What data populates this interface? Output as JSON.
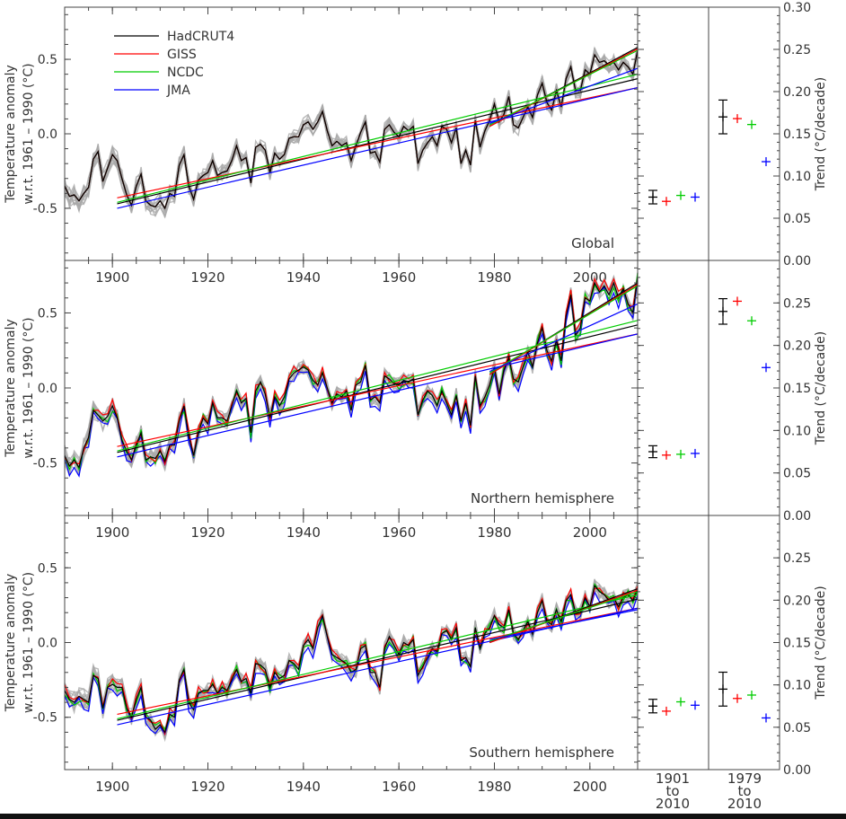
{
  "figure": {
    "y_tick_labels": [
      "-0.5",
      "0.0",
      "0.5"
    ],
    "x_tick_labels": [
      "1900",
      "1920",
      "1940",
      "1960",
      "1980",
      "2000"
    ],
    "trend_tick_labels": [
      "0.00",
      "0.05",
      "0.10",
      "0.15",
      "0.20",
      "0.25",
      "0.30"
    ],
    "ylabel_line1": "Temperature anomaly",
    "ylabel_line2": "w.r.t. 1961 – 1990 (°C)",
    "trend_ylabel": "Trend (°C/decade)",
    "period1": [
      "1901",
      "to",
      "2010"
    ],
    "period2": [
      "1979",
      "to",
      "2010"
    ]
  },
  "colors": {
    "HadCRUT4": "#000000",
    "GISS": "#ff0000",
    "NCDC": "#00cc00",
    "JMA": "#0000ff",
    "ensemble": "#a9a9a9",
    "axis": "#444444"
  },
  "chart_data": [
    {
      "type": "line",
      "panel_label": "Global",
      "xlim": [
        1890,
        2010
      ],
      "ylim": [
        -0.85,
        0.85
      ],
      "years_start": 1890,
      "legend": [
        "HadCRUT4",
        "GISS",
        "NCDC",
        "JMA"
      ],
      "series": [
        {
          "name": "HadCRUT4",
          "values": [
            -0.35,
            -0.42,
            -0.41,
            -0.45,
            -0.4,
            -0.36,
            -0.17,
            -0.12,
            -0.32,
            -0.23,
            -0.14,
            -0.18,
            -0.3,
            -0.41,
            -0.48,
            -0.35,
            -0.27,
            -0.45,
            -0.48,
            -0.49,
            -0.45,
            -0.5,
            -0.4,
            -0.42,
            -0.21,
            -0.14,
            -0.35,
            -0.44,
            -0.31,
            -0.28,
            -0.26,
            -0.18,
            -0.28,
            -0.26,
            -0.25,
            -0.18,
            -0.08,
            -0.18,
            -0.16,
            -0.33,
            -0.09,
            -0.07,
            -0.11,
            -0.26,
            -0.13,
            -0.17,
            -0.14,
            -0.03,
            -0.02,
            -0.02,
            0.06,
            0.08,
            0.03,
            0.08,
            0.15,
            0.02,
            -0.08,
            -0.05,
            -0.08,
            -0.06,
            -0.18,
            -0.08,
            0.01,
            0.08,
            -0.13,
            -0.12,
            -0.19,
            0.03,
            0.06,
            0.01,
            -0.02,
            0.05,
            0.02,
            0.05,
            -0.2,
            -0.11,
            -0.06,
            -0.02,
            -0.08,
            0.05,
            0.03,
            -0.06,
            0.04,
            -0.2,
            -0.11,
            -0.21,
            0.09,
            -0.09,
            0.02,
            0.09,
            0.2,
            0.08,
            0.13,
            0.25,
            0.06,
            0.04,
            0.11,
            0.18,
            0.11,
            0.26,
            0.34,
            0.21,
            0.16,
            0.29,
            0.18,
            0.37,
            0.45,
            0.29,
            0.29,
            0.43,
            0.4,
            0.53,
            0.48,
            0.49,
            0.46,
            0.48,
            0.43,
            0.48,
            0.45,
            0.4,
            0.56
          ]
        },
        {
          "name": "GISS",
          "values": [
            -0.35,
            -0.42,
            -0.41,
            -0.45,
            -0.4,
            -0.36,
            -0.17,
            -0.12,
            -0.32,
            -0.23,
            -0.14,
            -0.18,
            -0.3,
            -0.41,
            -0.48,
            -0.35,
            -0.27,
            -0.45,
            -0.48,
            -0.49,
            -0.45,
            -0.5,
            -0.4,
            -0.42,
            -0.21,
            -0.14,
            -0.35,
            -0.44,
            -0.31,
            -0.28,
            -0.26,
            -0.18,
            -0.28,
            -0.26,
            -0.25,
            -0.18,
            -0.08,
            -0.18,
            -0.16,
            -0.33,
            -0.09,
            -0.07,
            -0.11,
            -0.26,
            -0.13,
            -0.17,
            -0.14,
            -0.03,
            -0.02,
            -0.02,
            0.06,
            0.08,
            0.03,
            0.08,
            0.15,
            0.02,
            -0.08,
            -0.05,
            -0.08,
            -0.06,
            -0.18,
            -0.08,
            0.01,
            0.08,
            -0.13,
            -0.12,
            -0.19,
            0.03,
            0.06,
            0.01,
            -0.02,
            0.05,
            0.02,
            0.05,
            -0.2,
            -0.11,
            -0.06,
            -0.02,
            -0.08,
            0.05,
            0.03,
            -0.06,
            0.04,
            -0.2,
            -0.11,
            -0.21,
            0.09,
            -0.09,
            0.02,
            0.09,
            0.2,
            0.08,
            0.13,
            0.25,
            0.06,
            0.04,
            0.11,
            0.18,
            0.11,
            0.26,
            0.34,
            0.21,
            0.16,
            0.29,
            0.18,
            0.37,
            0.45,
            0.29,
            0.29,
            0.43,
            0.4,
            0.53,
            0.48,
            0.49,
            0.46,
            0.48,
            0.43,
            0.48,
            0.45,
            0.4,
            0.56
          ]
        },
        {
          "name": "NCDC",
          "values": [
            -0.35,
            -0.42,
            -0.41,
            -0.45,
            -0.4,
            -0.36,
            -0.17,
            -0.12,
            -0.32,
            -0.23,
            -0.14,
            -0.18,
            -0.3,
            -0.41,
            -0.48,
            -0.35,
            -0.27,
            -0.45,
            -0.48,
            -0.49,
            -0.45,
            -0.5,
            -0.4,
            -0.42,
            -0.21,
            -0.14,
            -0.35,
            -0.44,
            -0.31,
            -0.28,
            -0.26,
            -0.18,
            -0.28,
            -0.26,
            -0.25,
            -0.18,
            -0.08,
            -0.18,
            -0.16,
            -0.33,
            -0.09,
            -0.07,
            -0.11,
            -0.26,
            -0.13,
            -0.17,
            -0.14,
            -0.03,
            -0.02,
            -0.02,
            0.06,
            0.08,
            0.03,
            0.08,
            0.15,
            0.02,
            -0.08,
            -0.05,
            -0.08,
            -0.06,
            -0.18,
            -0.08,
            0.01,
            0.08,
            -0.13,
            -0.12,
            -0.19,
            0.03,
            0.06,
            0.01,
            -0.02,
            0.05,
            0.02,
            0.05,
            -0.2,
            -0.11,
            -0.06,
            -0.02,
            -0.08,
            0.05,
            0.03,
            -0.06,
            0.04,
            -0.2,
            -0.11,
            -0.21,
            0.09,
            -0.09,
            0.02,
            0.09,
            0.2,
            0.08,
            0.13,
            0.25,
            0.06,
            0.04,
            0.11,
            0.18,
            0.11,
            0.26,
            0.34,
            0.21,
            0.16,
            0.29,
            0.18,
            0.37,
            0.45,
            0.29,
            0.29,
            0.43,
            0.4,
            0.53,
            0.48,
            0.49,
            0.46,
            0.48,
            0.43,
            0.48,
            0.45,
            0.4,
            0.56
          ]
        },
        {
          "name": "JMA",
          "values": [
            -0.35,
            -0.42,
            -0.41,
            -0.45,
            -0.4,
            -0.36,
            -0.17,
            -0.12,
            -0.32,
            -0.23,
            -0.14,
            -0.18,
            -0.3,
            -0.41,
            -0.48,
            -0.35,
            -0.27,
            -0.45,
            -0.48,
            -0.49,
            -0.45,
            -0.5,
            -0.4,
            -0.42,
            -0.21,
            -0.14,
            -0.35,
            -0.44,
            -0.31,
            -0.28,
            -0.26,
            -0.18,
            -0.28,
            -0.26,
            -0.25,
            -0.18,
            -0.08,
            -0.18,
            -0.16,
            -0.33,
            -0.09,
            -0.07,
            -0.11,
            -0.26,
            -0.13,
            -0.17,
            -0.14,
            -0.03,
            -0.02,
            -0.02,
            0.06,
            0.08,
            0.03,
            0.08,
            0.15,
            0.02,
            -0.08,
            -0.05,
            -0.08,
            -0.06,
            -0.18,
            -0.08,
            0.01,
            0.08,
            -0.13,
            -0.12,
            -0.19,
            0.03,
            0.06,
            0.01,
            -0.02,
            0.05,
            0.02,
            0.05,
            -0.2,
            -0.11,
            -0.06,
            -0.02,
            -0.08,
            0.05,
            0.03,
            -0.06,
            0.04,
            -0.2,
            -0.11,
            -0.21,
            0.09,
            -0.09,
            0.02,
            0.09,
            0.2,
            0.08,
            0.13,
            0.25,
            0.06,
            0.04,
            0.11,
            0.18,
            0.11,
            0.26,
            0.34,
            0.21,
            0.16,
            0.29,
            0.18,
            0.37,
            0.45,
            0.29,
            0.29,
            0.43,
            0.4,
            0.53,
            0.48,
            0.49,
            0.46,
            0.48,
            0.43,
            0.48,
            0.45,
            0.4,
            0.56
          ]
        }
      ],
      "trend_lines": {
        "1901-2010": {
          "HadCRUT4": [
            -0.47,
            0.37
          ],
          "GISS": [
            -0.43,
            0.31
          ],
          "NCDC": [
            -0.46,
            0.4
          ],
          "JMA": [
            -0.5,
            0.31
          ]
        },
        "1979-2010": {
          "HadCRUT4": [
            0.05,
            0.58
          ],
          "GISS": [
            0.05,
            0.57
          ],
          "NCDC": [
            0.06,
            0.56
          ],
          "JMA": [
            0.07,
            0.44
          ]
        }
      },
      "trend_ylim": [
        0.0,
        0.3
      ],
      "trends": {
        "1901-2010": {
          "HadCRUT4": {
            "value": 0.075,
            "err": 0.008
          },
          "GISS": 0.07,
          "NCDC": 0.077,
          "JMA": 0.075
        },
        "1979-2010": {
          "HadCRUT4": {
            "value": 0.17,
            "err": 0.02
          },
          "GISS": 0.168,
          "NCDC": 0.161,
          "JMA": 0.117
        }
      }
    },
    {
      "type": "line",
      "panel_label": "Northern hemisphere",
      "xlim": [
        1890,
        2010
      ],
      "ylim": [
        -0.85,
        0.85
      ],
      "years_start": 1890,
      "series": [
        {
          "name": "HadCRUT4",
          "values": [
            -0.45,
            -0.52,
            -0.48,
            -0.53,
            -0.4,
            -0.33,
            -0.15,
            -0.18,
            -0.22,
            -0.19,
            -0.12,
            -0.2,
            -0.35,
            -0.42,
            -0.48,
            -0.38,
            -0.3,
            -0.48,
            -0.46,
            -0.47,
            -0.42,
            -0.49,
            -0.38,
            -0.38,
            -0.22,
            -0.12,
            -0.32,
            -0.45,
            -0.3,
            -0.2,
            -0.24,
            -0.1,
            -0.2,
            -0.2,
            -0.22,
            -0.12,
            -0.02,
            -0.1,
            -0.07,
            -0.3,
            -0.02,
            0.04,
            -0.04,
            -0.2,
            -0.06,
            -0.12,
            -0.06,
            0.06,
            0.1,
            0.12,
            0.14,
            0.12,
            0.05,
            0.02,
            0.1,
            0.0,
            -0.1,
            -0.04,
            -0.06,
            -0.02,
            -0.15,
            0.02,
            0.04,
            0.15,
            -0.08,
            -0.06,
            -0.1,
            0.08,
            0.06,
            0.03,
            0.02,
            0.05,
            0.04,
            0.06,
            -0.18,
            -0.08,
            -0.02,
            -0.05,
            -0.12,
            -0.02,
            -0.1,
            -0.18,
            -0.05,
            -0.22,
            -0.1,
            -0.25,
            0.08,
            -0.12,
            -0.06,
            0.02,
            0.14,
            -0.04,
            0.12,
            0.2,
            0.06,
            0.04,
            0.14,
            0.24,
            0.14,
            0.3,
            0.4,
            0.25,
            0.18,
            0.32,
            0.18,
            0.48,
            0.62,
            0.35,
            0.4,
            0.6,
            0.58,
            0.7,
            0.64,
            0.68,
            0.62,
            0.7,
            0.6,
            0.66,
            0.56,
            0.5,
            0.74
          ]
        }
      ],
      "trend_ylim": [
        0.0,
        0.3
      ],
      "trends": {
        "1901-2010": {
          "HadCRUT4": {
            "value": 0.075,
            "err": 0.007
          },
          "GISS": 0.071,
          "NCDC": 0.072,
          "JMA": 0.073
        },
        "1979-2010": {
          "HadCRUT4": {
            "value": 0.24,
            "err": 0.015
          },
          "GISS": 0.252,
          "NCDC": 0.229,
          "JMA": 0.174
        }
      }
    },
    {
      "type": "line",
      "panel_label": "Southern hemisphere",
      "xlim": [
        1890,
        2010
      ],
      "ylim": [
        -0.85,
        0.85
      ],
      "years_start": 1890,
      "series": [
        {
          "name": "HadCRUT4",
          "values": [
            -0.32,
            -0.38,
            -0.4,
            -0.36,
            -0.38,
            -0.4,
            -0.22,
            -0.24,
            -0.44,
            -0.3,
            -0.28,
            -0.3,
            -0.3,
            -0.44,
            -0.5,
            -0.38,
            -0.3,
            -0.5,
            -0.52,
            -0.58,
            -0.55,
            -0.6,
            -0.48,
            -0.5,
            -0.25,
            -0.18,
            -0.4,
            -0.45,
            -0.34,
            -0.32,
            -0.32,
            -0.28,
            -0.34,
            -0.3,
            -0.32,
            -0.25,
            -0.18,
            -0.26,
            -0.24,
            -0.34,
            -0.14,
            -0.15,
            -0.18,
            -0.3,
            -0.2,
            -0.24,
            -0.22,
            -0.12,
            -0.14,
            -0.18,
            -0.02,
            0.02,
            -0.04,
            0.1,
            0.18,
            0.04,
            -0.08,
            -0.1,
            -0.12,
            -0.14,
            -0.2,
            -0.18,
            -0.04,
            -0.02,
            -0.2,
            -0.2,
            -0.3,
            -0.04,
            0.04,
            -0.02,
            -0.08,
            0.0,
            -0.02,
            0.02,
            -0.22,
            -0.16,
            -0.1,
            -0.04,
            -0.06,
            0.06,
            0.08,
            0.02,
            0.1,
            -0.12,
            -0.1,
            -0.16,
            0.1,
            -0.04,
            0.06,
            0.1,
            0.18,
            0.12,
            0.1,
            0.22,
            0.06,
            0.02,
            0.08,
            0.14,
            0.06,
            0.2,
            0.28,
            0.14,
            0.12,
            0.22,
            0.14,
            0.28,
            0.32,
            0.2,
            0.2,
            0.3,
            0.24,
            0.38,
            0.34,
            0.32,
            0.28,
            0.3,
            0.24,
            0.3,
            0.32,
            0.28,
            0.36
          ]
        }
      ],
      "trend_ylim": [
        0.0,
        0.3
      ],
      "trends": {
        "1901-2010": {
          "HadCRUT4": {
            "value": 0.075,
            "err": 0.008
          },
          "GISS": 0.069,
          "NCDC": 0.08,
          "JMA": 0.076
        },
        "1979-2010": {
          "HadCRUT4": {
            "value": 0.095,
            "err": 0.02
          },
          "GISS": 0.084,
          "NCDC": 0.088,
          "JMA": 0.061
        }
      }
    }
  ]
}
